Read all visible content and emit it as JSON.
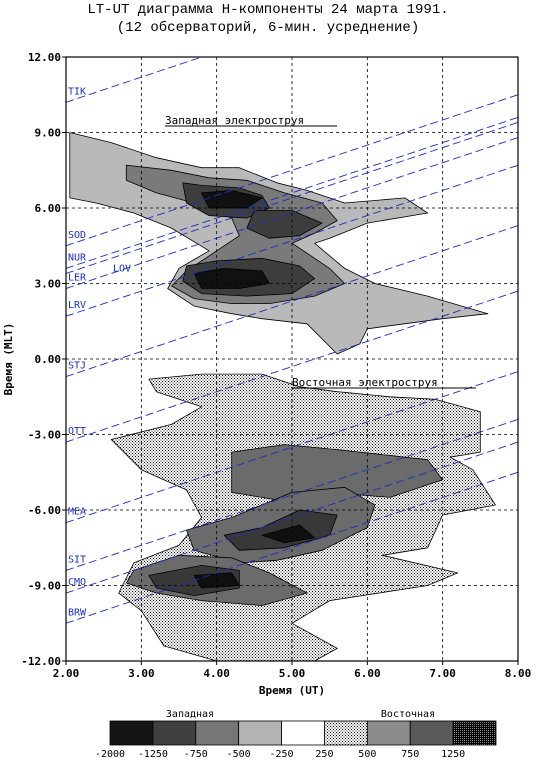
{
  "title": "LT-UT диаграмма H-компоненты 24 марта 1991.",
  "subtitle": "(12 обсерваторий, 6-мин. усреднение)",
  "chart_data": {
    "type": "heatmap",
    "xlabel": "Время (UT)",
    "ylabel": "Время (MLT)",
    "xlim": [
      2.0,
      8.0
    ],
    "ylim": [
      -12.0,
      12.0
    ],
    "x_ticks": [
      "2.00",
      "3.00",
      "4.00",
      "5.00",
      "6.00",
      "7.00",
      "8.00"
    ],
    "y_ticks": [
      "12.00",
      "9.00",
      "6.00",
      "3.00",
      "0.00",
      "-3.00",
      "-6.00",
      "-9.00",
      "-12.00"
    ],
    "grid": true,
    "annotations": [
      "Западная электроструя",
      "Восточная электроструя"
    ],
    "stations": [
      {
        "name": "TIK",
        "mlt_at_2ut": 10.2
      },
      {
        "name": "SOD",
        "mlt_at_2ut": 4.5
      },
      {
        "name": "NUR",
        "mlt_at_2ut": 3.6
      },
      {
        "name": "LOV",
        "mlt_at_2ut": 3.4
      },
      {
        "name": "LER",
        "mlt_at_2ut": 2.8
      },
      {
        "name": "LRV",
        "mlt_at_2ut": 1.7
      },
      {
        "name": "STJ",
        "mlt_at_2ut": -0.7
      },
      {
        "name": "OTT",
        "mlt_at_2ut": -3.3
      },
      {
        "name": "MEA",
        "mlt_at_2ut": -6.5
      },
      {
        "name": "SIT",
        "mlt_at_2ut": -8.4
      },
      {
        "name": "CMO",
        "mlt_at_2ut": -9.3
      },
      {
        "name": "BRW",
        "mlt_at_2ut": -10.5
      }
    ],
    "legend": {
      "left_label": "Западная",
      "right_label": "Восточная",
      "boundaries": [
        "-2000",
        "-1250",
        "-750",
        "-500",
        "-250",
        "250",
        "500",
        "750",
        "1250"
      ],
      "bins": [
        {
          "range": [
            -2000,
            -1250
          ],
          "color": "#151515"
        },
        {
          "range": [
            -1250,
            -750
          ],
          "color": "#3f3f3f"
        },
        {
          "range": [
            -750,
            -500
          ],
          "color": "#767676"
        },
        {
          "range": [
            -500,
            -250
          ],
          "color": "#b3b3b3"
        },
        {
          "range": [
            -250,
            250
          ],
          "color": "#ffffff"
        },
        {
          "range": [
            250,
            500
          ],
          "color": "#d9d9d9"
        },
        {
          "range": [
            500,
            750
          ],
          "color": "#8c8c8c"
        },
        {
          "range": [
            750,
            1250
          ],
          "color": "#5a5a5a"
        },
        {
          "range": [
            1250,
            2000
          ],
          "color": "#262626"
        }
      ]
    },
    "regions": [
      {
        "name": "west-weak",
        "level": -250,
        "points": [
          [
            2.05,
            9.0
          ],
          [
            2.6,
            8.6
          ],
          [
            3.2,
            8.0
          ],
          [
            3.8,
            7.6
          ],
          [
            4.3,
            7.6
          ],
          [
            4.8,
            7.0
          ],
          [
            5.2,
            6.7
          ],
          [
            5.7,
            6.2
          ],
          [
            6.5,
            6.4
          ],
          [
            6.8,
            5.8
          ],
          [
            6.0,
            5.4
          ],
          [
            5.5,
            4.8
          ],
          [
            5.3,
            4.6
          ],
          [
            5.7,
            3.6
          ],
          [
            6.1,
            3.0
          ],
          [
            6.8,
            2.5
          ],
          [
            7.6,
            1.8
          ],
          [
            7.0,
            1.6
          ],
          [
            6.0,
            1.2
          ],
          [
            5.9,
            0.6
          ],
          [
            5.6,
            0.2
          ],
          [
            5.2,
            1.4
          ],
          [
            4.6,
            1.6
          ],
          [
            4.2,
            1.8
          ],
          [
            3.7,
            2.1
          ],
          [
            3.35,
            2.8
          ],
          [
            3.5,
            3.6
          ],
          [
            3.9,
            4.3
          ],
          [
            3.4,
            5.2
          ],
          [
            2.9,
            5.8
          ],
          [
            2.4,
            6.2
          ],
          [
            2.05,
            6.4
          ]
        ]
      },
      {
        "name": "west-moderate",
        "level": -500,
        "points": [
          [
            2.8,
            7.7
          ],
          [
            3.4,
            7.5
          ],
          [
            3.9,
            7.2
          ],
          [
            4.4,
            7.1
          ],
          [
            4.9,
            6.6
          ],
          [
            5.4,
            6.2
          ],
          [
            5.6,
            5.5
          ],
          [
            5.3,
            5.0
          ],
          [
            5.0,
            4.6
          ],
          [
            5.5,
            3.6
          ],
          [
            5.7,
            3.0
          ],
          [
            5.3,
            2.5
          ],
          [
            4.7,
            2.2
          ],
          [
            4.2,
            2.2
          ],
          [
            3.7,
            2.4
          ],
          [
            3.4,
            2.9
          ],
          [
            3.6,
            3.5
          ],
          [
            4.0,
            4.3
          ],
          [
            4.3,
            4.9
          ],
          [
            4.2,
            5.6
          ],
          [
            3.7,
            6.2
          ],
          [
            3.2,
            6.6
          ],
          [
            2.8,
            7.1
          ]
        ]
      },
      {
        "name": "west-strong",
        "level": -750,
        "points": [
          [
            3.55,
            7.0
          ],
          [
            3.8,
            6.9
          ],
          [
            4.3,
            6.8
          ],
          [
            4.6,
            6.5
          ],
          [
            4.7,
            6.0
          ],
          [
            4.4,
            5.6
          ],
          [
            3.9,
            5.7
          ],
          [
            3.6,
            6.2
          ]
        ]
      },
      {
        "name": "west-strong-2",
        "level": -750,
        "points": [
          [
            4.5,
            5.9
          ],
          [
            5.0,
            5.9
          ],
          [
            5.4,
            5.4
          ],
          [
            5.1,
            4.9
          ],
          [
            4.7,
            4.8
          ],
          [
            4.4,
            5.2
          ]
        ]
      },
      {
        "name": "west-strong-3",
        "level": -750,
        "points": [
          [
            3.6,
            3.7
          ],
          [
            4.0,
            3.9
          ],
          [
            4.6,
            4.0
          ],
          [
            5.1,
            3.7
          ],
          [
            5.3,
            3.2
          ],
          [
            5.0,
            2.6
          ],
          [
            4.4,
            2.5
          ],
          [
            3.8,
            2.6
          ],
          [
            3.55,
            3.1
          ]
        ]
      },
      {
        "name": "west-peak",
        "level": -1250,
        "points": [
          [
            3.8,
            6.6
          ],
          [
            4.2,
            6.7
          ],
          [
            4.6,
            6.4
          ],
          [
            4.4,
            6.0
          ],
          [
            3.9,
            6.0
          ]
        ]
      },
      {
        "name": "west-peak-2",
        "level": -1250,
        "points": [
          [
            3.7,
            3.4
          ],
          [
            4.1,
            3.6
          ],
          [
            4.6,
            3.5
          ],
          [
            4.7,
            3.0
          ],
          [
            4.3,
            2.8
          ],
          [
            3.8,
            2.8
          ]
        ]
      },
      {
        "name": "east-weak",
        "level": 250,
        "points": [
          [
            3.1,
            -0.8
          ],
          [
            3.8,
            -0.6
          ],
          [
            4.6,
            -0.6
          ],
          [
            5.1,
            -1.1
          ],
          [
            5.6,
            -1.3
          ],
          [
            6.3,
            -1.5
          ],
          [
            6.9,
            -1.6
          ],
          [
            7.5,
            -2.1
          ],
          [
            7.5,
            -3.7
          ],
          [
            7.1,
            -3.9
          ],
          [
            7.4,
            -4.4
          ],
          [
            7.7,
            -5.8
          ],
          [
            7.0,
            -6.2
          ],
          [
            6.8,
            -7.5
          ],
          [
            6.2,
            -7.8
          ],
          [
            7.2,
            -8.5
          ],
          [
            6.8,
            -9.0
          ],
          [
            5.5,
            -9.6
          ],
          [
            5.0,
            -10.5
          ],
          [
            5.6,
            -11.5
          ],
          [
            5.3,
            -12.0
          ],
          [
            4.0,
            -12.0
          ],
          [
            3.3,
            -11.4
          ],
          [
            3.0,
            -10.0
          ],
          [
            2.7,
            -9.3
          ],
          [
            2.9,
            -8.1
          ],
          [
            3.5,
            -7.4
          ],
          [
            3.8,
            -6.3
          ],
          [
            3.6,
            -5.2
          ],
          [
            3.0,
            -4.4
          ],
          [
            2.6,
            -3.2
          ],
          [
            3.4,
            -2.6
          ],
          [
            3.8,
            -1.9
          ],
          [
            3.2,
            -1.3
          ]
        ]
      },
      {
        "name": "east-moderate",
        "level": 500,
        "points": [
          [
            4.2,
            -3.7
          ],
          [
            4.9,
            -3.4
          ],
          [
            5.6,
            -3.6
          ],
          [
            6.2,
            -3.8
          ],
          [
            6.8,
            -4.0
          ],
          [
            7.0,
            -4.8
          ],
          [
            6.3,
            -5.5
          ],
          [
            5.5,
            -5.3
          ],
          [
            4.8,
            -5.6
          ],
          [
            4.2,
            -5.3
          ]
        ]
      },
      {
        "name": "east-moderate-2",
        "level": 500,
        "points": [
          [
            3.6,
            -6.8
          ],
          [
            4.2,
            -6.3
          ],
          [
            5.0,
            -5.3
          ],
          [
            5.7,
            -5.1
          ],
          [
            6.1,
            -5.8
          ],
          [
            6.0,
            -6.7
          ],
          [
            5.4,
            -7.6
          ],
          [
            4.8,
            -8.0
          ],
          [
            4.3,
            -8.1
          ],
          [
            3.7,
            -7.6
          ]
        ]
      },
      {
        "name": "east-moderate-3",
        "level": 500,
        "points": [
          [
            2.9,
            -8.4
          ],
          [
            3.5,
            -7.8
          ],
          [
            4.2,
            -7.9
          ],
          [
            4.7,
            -8.5
          ],
          [
            5.2,
            -9.3
          ],
          [
            4.6,
            -9.8
          ],
          [
            3.8,
            -9.6
          ],
          [
            3.2,
            -9.3
          ],
          [
            2.8,
            -8.9
          ]
        ]
      },
      {
        "name": "east-strong",
        "level": 750,
        "points": [
          [
            4.1,
            -7.0
          ],
          [
            4.6,
            -6.7
          ],
          [
            5.1,
            -6.0
          ],
          [
            5.6,
            -6.2
          ],
          [
            5.5,
            -7.0
          ],
          [
            4.9,
            -7.5
          ],
          [
            4.3,
            -7.6
          ]
        ]
      },
      {
        "name": "east-strong-2",
        "level": 750,
        "points": [
          [
            3.1,
            -8.6
          ],
          [
            3.8,
            -8.2
          ],
          [
            4.3,
            -8.4
          ],
          [
            4.3,
            -9.1
          ],
          [
            3.7,
            -9.4
          ],
          [
            3.2,
            -9.1
          ]
        ]
      },
      {
        "name": "east-peak",
        "level": 1250,
        "points": [
          [
            4.6,
            -7.0
          ],
          [
            5.1,
            -6.6
          ],
          [
            5.3,
            -7.1
          ],
          [
            4.9,
            -7.3
          ]
        ]
      },
      {
        "name": "east-peak-2",
        "level": 1250,
        "points": [
          [
            3.7,
            -8.6
          ],
          [
            4.2,
            -8.5
          ],
          [
            4.3,
            -9.0
          ],
          [
            3.8,
            -9.1
          ]
        ]
      }
    ]
  }
}
